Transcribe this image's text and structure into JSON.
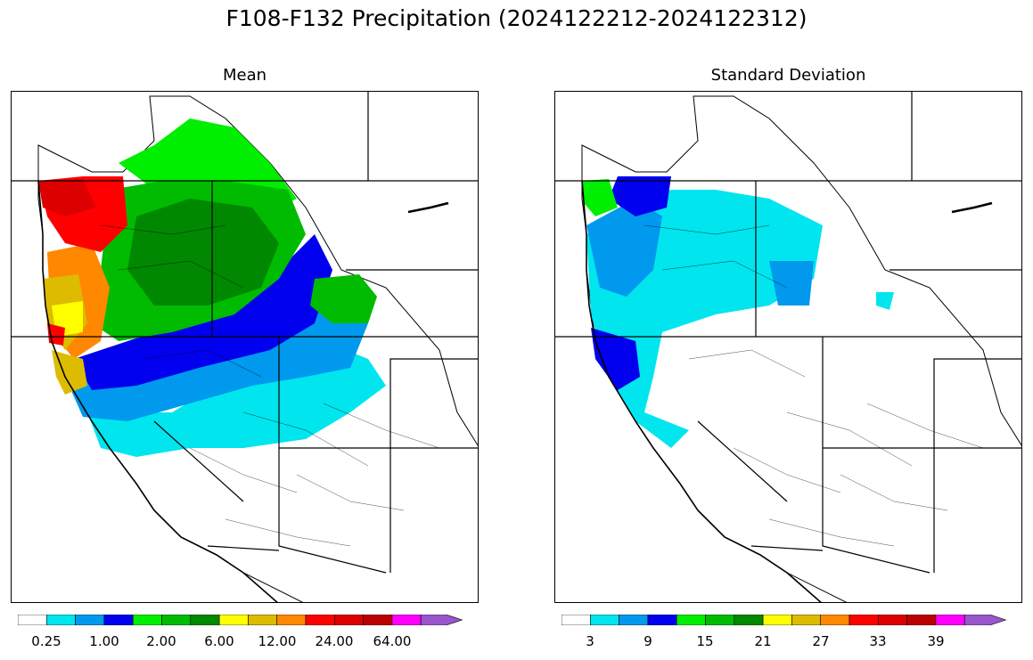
{
  "figure": {
    "title": "F108-F132 Precipitation (2024122212-2024122312)"
  },
  "panels": [
    {
      "title": "Mean"
    },
    {
      "title": "Standard Deviation"
    }
  ],
  "colorbars": {
    "mean": {
      "colors": [
        "#ffffff",
        "#00e5ee",
        "#0099ee",
        "#0000ee",
        "#00ee00",
        "#00bb00",
        "#008800",
        "#ffff00",
        "#ddbb00",
        "#ff8800",
        "#ff0000",
        "#dd0000",
        "#bb0000",
        "#ff00ff",
        "#9955cc"
      ],
      "tick_labels": [
        "0.25",
        "1.00",
        "2.00",
        "6.00",
        "12.00",
        "24.00",
        "64.00"
      ],
      "extend": "max"
    },
    "sd": {
      "colors": [
        "#ffffff",
        "#00e5ee",
        "#0099ee",
        "#0000ee",
        "#00ee00",
        "#00bb00",
        "#008800",
        "#ffff00",
        "#ddbb00",
        "#ff8800",
        "#ff0000",
        "#dd0000",
        "#bb0000",
        "#ff00ff",
        "#9955cc"
      ],
      "tick_labels": [
        "3",
        "9",
        "15",
        "21",
        "27",
        "33",
        "39"
      ],
      "extend": "max"
    }
  }
}
